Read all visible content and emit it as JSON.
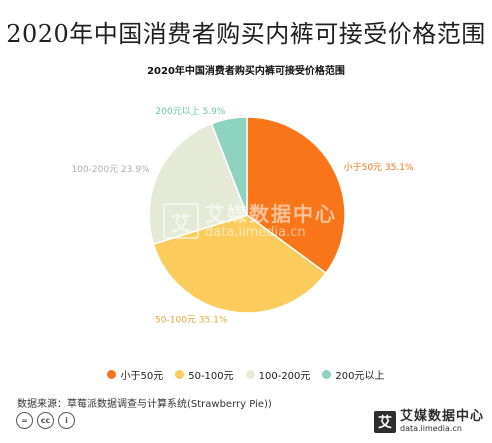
{
  "page": {
    "title": "2020年中国消费者购买内裤可接受价格范围",
    "source": "数据来源：草莓派数据调查与计算系统(Strawberry Pie))",
    "license_icons": [
      "=",
      "cc",
      "i"
    ],
    "footer_logo": {
      "badge": "艾",
      "cn": "艾媒数据中心",
      "en": "data.iimedia.cn"
    },
    "watermark": {
      "badge": "艾",
      "cn": "艾媒数据中心",
      "en": "data.iimedia.cn"
    }
  },
  "chart_data": {
    "type": "pie",
    "title": "2020年中国消费者购买内裤可接受价格范围",
    "categories": [
      "小于50元",
      "50-100元",
      "100-200元",
      "200元以上"
    ],
    "values": [
      35.1,
      35.1,
      23.9,
      5.9
    ],
    "labels": [
      "小于50元 35.1%",
      "50-100元 35.1%",
      "100-200元 23.9%",
      "200元以上 5.9%"
    ],
    "colors": [
      "#F87619",
      "#FBCB5C",
      "#E4EAD6",
      "#8DD3BF"
    ],
    "label_colors": [
      "#F87619",
      "#E3A93A",
      "#AFAFAF",
      "#6CC3AB"
    ],
    "legend": {
      "placement": "bottom",
      "items": [
        "小于50元",
        "50-100元",
        "100-200元",
        "200元以上"
      ]
    }
  }
}
